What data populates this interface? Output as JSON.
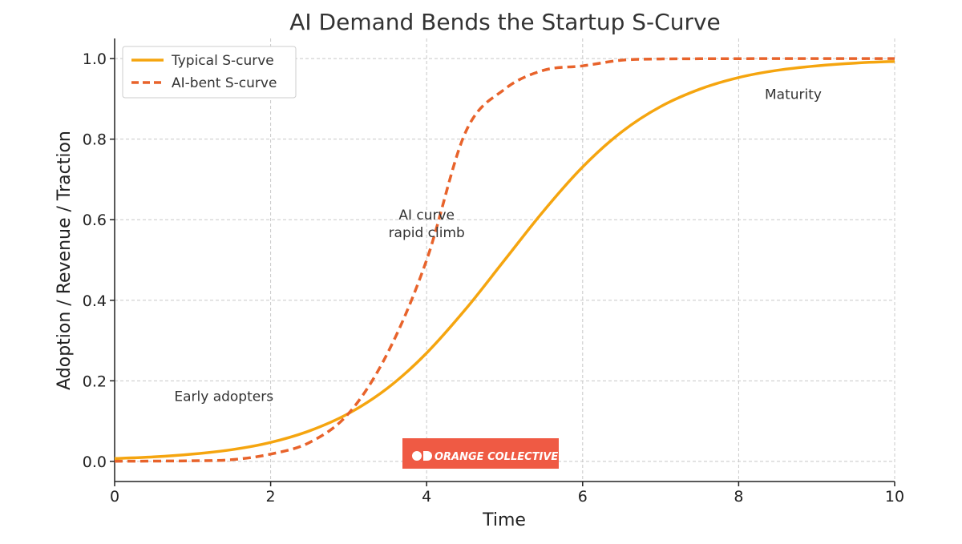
{
  "chart_data": {
    "type": "line",
    "title": "AI Demand Bends the Startup S-Curve",
    "xlabel": "Time",
    "ylabel": "Adoption / Revenue / Traction",
    "xlim": [
      0,
      10
    ],
    "ylim": [
      -0.05,
      1.05
    ],
    "x_ticks": [
      0,
      2,
      4,
      6,
      8,
      10
    ],
    "y_ticks": [
      0.0,
      0.2,
      0.4,
      0.6,
      0.8,
      1.0
    ],
    "x_tick_labels": [
      "0",
      "2",
      "4",
      "6",
      "8",
      "10"
    ],
    "y_tick_labels": [
      "0.0",
      "0.2",
      "0.4",
      "0.6",
      "0.8",
      "1.0"
    ],
    "grid": true,
    "legend": "top-left",
    "x": [
      0,
      0.5,
      1,
      1.5,
      2,
      2.5,
      3,
      3.5,
      4,
      4.5,
      5,
      5.5,
      6,
      6.5,
      7,
      7.5,
      8,
      8.5,
      9,
      9.5,
      10
    ],
    "series": [
      {
        "name": "Typical S-curve",
        "style": "solid",
        "color": "#f5a50f",
        "values": [
          0.007,
          0.011,
          0.018,
          0.029,
          0.047,
          0.076,
          0.119,
          0.182,
          0.269,
          0.378,
          0.5,
          0.622,
          0.731,
          0.818,
          0.881,
          0.924,
          0.953,
          0.971,
          0.982,
          0.989,
          0.993
        ]
      },
      {
        "name": "AI-bent S-curve",
        "style": "dashed",
        "color": "#e8632b",
        "values": [
          0.0003,
          0.0007,
          0.0015,
          0.0041,
          0.018,
          0.047,
          0.119,
          0.269,
          0.5,
          0.818,
          0.924,
          0.971,
          0.982,
          0.996,
          0.999,
          0.9997,
          0.9999,
          1.0,
          1.0,
          1.0,
          1.0
        ]
      }
    ],
    "annotations": [
      {
        "text": "Early adopters",
        "x": 1.4,
        "y": 0.15
      },
      {
        "lines": [
          "AI curve",
          "rapid climb"
        ],
        "x": 4.0,
        "y": 0.6
      },
      {
        "text": "Maturity",
        "x": 8.7,
        "y": 0.9
      }
    ],
    "logo": {
      "text": "ORANGE COLLECTIVE",
      "background": "#ef5a44",
      "color": "#ffffff"
    }
  }
}
